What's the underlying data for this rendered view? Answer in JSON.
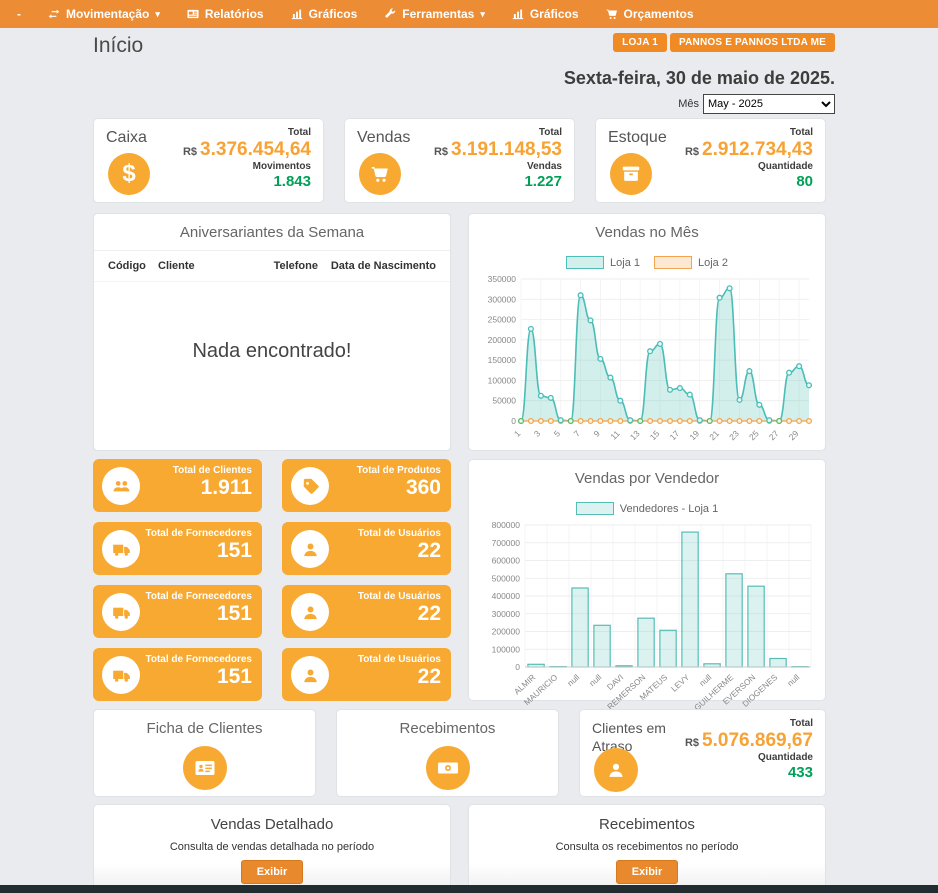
{
  "nav": {
    "items": [
      {
        "label": "-",
        "icon": "",
        "caret": false
      },
      {
        "label": "Movimentação",
        "icon": "exchange",
        "caret": true
      },
      {
        "label": "Relatórios",
        "icon": "newspaper",
        "caret": false
      },
      {
        "label": "Gráficos",
        "icon": "barchart",
        "caret": false
      },
      {
        "label": "Ferramentas",
        "icon": "wrench",
        "caret": true
      },
      {
        "label": "Gráficos",
        "icon": "barchart",
        "caret": false
      },
      {
        "label": "Orçamentos",
        "icon": "cart",
        "caret": false
      }
    ]
  },
  "header": {
    "title": "Início",
    "badges": [
      "LOJA 1",
      "PANNOS E PANNOS LTDA ME"
    ],
    "date": "Sexta-feira, 30 de maio de 2025.",
    "month_label": "Mês",
    "month_value": "May - 2025"
  },
  "summary_cards": [
    {
      "title": "Caixa",
      "icon": "dollar-icon",
      "total_label": "Total",
      "currency": "R$",
      "total": "3.376.454,64",
      "count_label": "Movimentos",
      "count": "1.843"
    },
    {
      "title": "Vendas",
      "icon": "cart-icon",
      "total_label": "Total",
      "currency": "R$",
      "total": "3.191.148,53",
      "count_label": "Vendas",
      "count": "1.227"
    },
    {
      "title": "Estoque",
      "icon": "box-icon",
      "total_label": "Total",
      "currency": "R$",
      "total": "2.912.734,43",
      "count_label": "Quantidade",
      "count": "80"
    }
  ],
  "birthdays": {
    "title": "Aniversariantes da Semana",
    "columns": [
      "Código",
      "Cliente",
      "Telefone",
      "Data de Nascimento"
    ],
    "empty_message": "Nada encontrado!"
  },
  "stat_cards": [
    {
      "label": "Total de Clientes",
      "value": "1.911",
      "icon": "users-icon"
    },
    {
      "label": "Total de Produtos",
      "value": "360",
      "icon": "tag-icon"
    },
    {
      "label": "Total de Fornecedores",
      "value": "151",
      "icon": "truck-icon"
    },
    {
      "label": "Total de Usuários",
      "value": "22",
      "icon": "user-icon"
    },
    {
      "label": "Total de Fornecedores",
      "value": "151",
      "icon": "truck-icon"
    },
    {
      "label": "Total de Usuários",
      "value": "22",
      "icon": "user-icon"
    },
    {
      "label": "Total de Fornecedores",
      "value": "151",
      "icon": "truck-icon"
    },
    {
      "label": "Total de Usuários",
      "value": "22",
      "icon": "user-icon"
    }
  ],
  "info_cards": [
    {
      "title": "Ficha de Clientes",
      "icon": "idcard-icon"
    },
    {
      "title": "Recebimentos",
      "icon": "banknote-icon"
    }
  ],
  "overdue_card": {
    "title": "Clientes em Atraso",
    "icon": "user-icon",
    "total_label": "Total",
    "currency": "R$",
    "total": "5.076.869,67",
    "count_label": "Quantidade",
    "count": "433"
  },
  "action_cards": [
    {
      "title": "Vendas Detalhado",
      "description": "Consulta de vendas detalhada no período",
      "button_label": "Exibir"
    },
    {
      "title": "Recebimentos",
      "description": "Consulta os recebimentos no período",
      "button_label": "Exibir"
    }
  ],
  "colors": {
    "nav_orange": "#ec8c34",
    "badge_orange": "#f08a24",
    "amber_card": "#f7a931",
    "value_orange": "#f7a234",
    "green": "#00a157",
    "teal": "#4cbdb7",
    "loja2_orange": "#f2a54e",
    "footer_dark": "#222d32"
  },
  "chart_data": [
    {
      "type": "area",
      "title": "Vendas no Mês",
      "x": [
        1,
        2,
        3,
        4,
        5,
        6,
        7,
        8,
        9,
        10,
        11,
        12,
        13,
        14,
        15,
        16,
        17,
        18,
        19,
        20,
        21,
        22,
        23,
        24,
        25,
        26,
        27,
        28,
        29,
        30
      ],
      "x_tick_labels": [
        "1",
        "3",
        "5",
        "7",
        "9",
        "11",
        "13",
        "15",
        "17",
        "19",
        "21",
        "23",
        "25",
        "27",
        "29"
      ],
      "series": [
        {
          "name": "Loja 1",
          "color": "#4cbdb7",
          "values": [
            0,
            227000,
            62000,
            57000,
            2000,
            0,
            310000,
            248000,
            153000,
            107000,
            50000,
            2000,
            0,
            172000,
            190000,
            77000,
            81000,
            65000,
            2000,
            0,
            304000,
            327000,
            52000,
            123000,
            40000,
            2000,
            0,
            119000,
            135000,
            88000
          ]
        },
        {
          "name": "Loja 2",
          "color": "#f2a54e",
          "values": [
            0,
            0,
            0,
            0,
            0,
            0,
            0,
            0,
            0,
            0,
            0,
            0,
            0,
            0,
            0,
            0,
            0,
            0,
            0,
            0,
            0,
            0,
            0,
            0,
            0,
            0,
            0,
            0,
            0,
            0
          ]
        }
      ],
      "ylim": [
        0,
        350000
      ],
      "ytick_step": 50000,
      "legend_position": "top",
      "grid": true
    },
    {
      "type": "bar",
      "title": "Vendas por Vendedor",
      "categories": [
        "ALMIR",
        "MAURICIO",
        "null",
        "null",
        "DAVI",
        "REMERSON",
        "MATEUS",
        "LEVY",
        "null",
        "GUILHERME",
        "EVERSON",
        "DIOGENES",
        "null"
      ],
      "series": [
        {
          "name": "Vendedores - Loja 1",
          "color": "#56bdb5",
          "values": [
            15000,
            2000,
            445000,
            235000,
            7000,
            275000,
            207000,
            760000,
            18000,
            525000,
            455000,
            48000,
            2000
          ]
        }
      ],
      "ylim": [
        0,
        800000
      ],
      "ytick_step": 100000,
      "legend_position": "top",
      "grid": true
    }
  ]
}
